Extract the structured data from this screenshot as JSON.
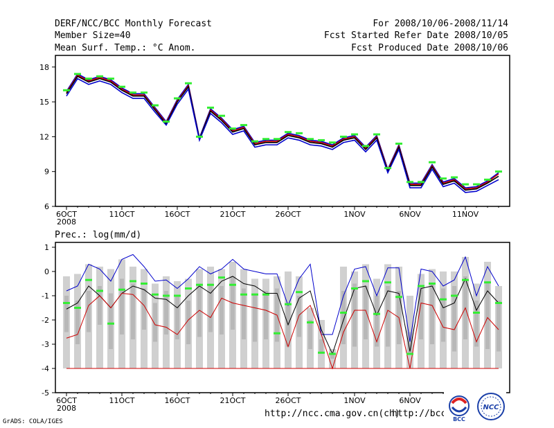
{
  "header": {
    "title": "DERF/NCC/BCC Monthly Forecast",
    "member": "Member Size=40",
    "variable": "Mean Surf. Temp.: °C Anom.",
    "period": "For 2008/10/06-2008/11/14",
    "refer": "Fcst Started Refer Date 2008/10/05",
    "produced": "Fcst Produced Date 2008/10/06"
  },
  "footer": {
    "grads": "GrADS: COLA/IGES",
    "url1": "http://ncc.cma.gov.cn(ch)",
    "url2": "http://bcc.c",
    "logo_bcc": "BCC",
    "logo_ncc": "NCC"
  },
  "colors": {
    "blue": "#0000cc",
    "red": "#cc0000",
    "green": "#33ee33",
    "box": "#d0d0d0",
    "grey": "#b8b8b8"
  },
  "chart_data": [
    {
      "type": "line",
      "title": "",
      "ylabel": "Mean Surf. Temp.: °C Anom.",
      "ylim": [
        6,
        19
      ],
      "yticks": [
        6,
        9,
        12,
        15,
        18
      ],
      "xticks": [
        {
          "day": 0,
          "label": "6OCT",
          "sub": "2008"
        },
        {
          "day": 5,
          "label": "11OCT"
        },
        {
          "day": 10,
          "label": "16OCT"
        },
        {
          "day": 15,
          "label": "21OCT"
        },
        {
          "day": 20,
          "label": "26OCT"
        },
        {
          "day": 26,
          "label": "1NOV"
        },
        {
          "day": 31,
          "label": "6NOV"
        },
        {
          "day": 36,
          "label": "11NOV"
        }
      ],
      "series": [
        {
          "name": "upper",
          "color": "#0000cc",
          "values": [
            15.9,
            17.4,
            16.9,
            17.2,
            16.9,
            16.2,
            15.7,
            15.7,
            14.5,
            13.3,
            15.2,
            16.5,
            11.9,
            14.4,
            13.6,
            12.6,
            12.9,
            11.5,
            11.7,
            11.7,
            12.3,
            12.1,
            11.7,
            11.6,
            11.3,
            11.9,
            12.1,
            11.1,
            12.1,
            9.2,
            11.3,
            8.0,
            8.0,
            9.6,
            8.1,
            8.4,
            7.6,
            7.7,
            8.2,
            8.9
          ]
        },
        {
          "name": "red",
          "color": "#cc0000",
          "values": [
            15.8,
            17.3,
            16.8,
            17.1,
            16.8,
            16.1,
            15.6,
            15.6,
            14.4,
            13.2,
            15.1,
            16.4,
            11.8,
            14.3,
            13.5,
            12.5,
            12.8,
            11.4,
            11.6,
            11.6,
            12.2,
            12.0,
            11.6,
            11.5,
            11.2,
            11.8,
            12.0,
            11.0,
            12.0,
            9.1,
            11.2,
            7.9,
            7.9,
            9.5,
            8.0,
            8.3,
            7.5,
            7.6,
            8.1,
            8.8
          ]
        },
        {
          "name": "mean",
          "color": "#000000",
          "values": [
            15.7,
            17.2,
            16.7,
            17.0,
            16.7,
            16.0,
            15.5,
            15.5,
            14.3,
            13.1,
            15.0,
            16.3,
            11.8,
            14.2,
            13.4,
            12.4,
            12.7,
            11.3,
            11.5,
            11.5,
            12.1,
            11.9,
            11.5,
            11.4,
            11.1,
            11.7,
            11.9,
            10.9,
            11.9,
            9.0,
            11.1,
            7.8,
            7.8,
            9.4,
            7.9,
            8.2,
            7.4,
            7.5,
            8.0,
            8.6
          ]
        },
        {
          "name": "lower",
          "color": "#0000cc",
          "values": [
            15.5,
            17.0,
            16.5,
            16.8,
            16.5,
            15.8,
            15.3,
            15.3,
            14.1,
            13.0,
            14.8,
            16.1,
            11.7,
            14.0,
            13.2,
            12.2,
            12.5,
            11.1,
            11.3,
            11.3,
            11.9,
            11.7,
            11.3,
            11.2,
            10.9,
            11.5,
            11.7,
            10.7,
            11.7,
            8.9,
            10.9,
            7.6,
            7.6,
            9.2,
            7.7,
            8.0,
            7.2,
            7.3,
            7.8,
            8.3
          ]
        },
        {
          "name": "observed",
          "color": "#33ee33",
          "values": [
            16.0,
            17.4,
            17.0,
            17.2,
            17.0,
            16.3,
            15.8,
            15.8,
            14.7,
            13.3,
            15.3,
            16.6,
            12.0,
            14.5,
            13.8,
            12.7,
            13.0,
            11.6,
            11.8,
            11.8,
            12.4,
            12.3,
            11.8,
            11.7,
            11.5,
            12.0,
            12.2,
            11.2,
            12.2,
            9.3,
            11.4,
            8.1,
            8.1,
            9.8,
            8.4,
            8.5,
            7.9,
            7.9,
            8.3,
            9.0
          ]
        }
      ]
    },
    {
      "type": "box",
      "title": "Prec.: log(mm/d)",
      "ylabel": "Prec.: log(mm/d)",
      "ylim": [
        -5,
        1.2
      ],
      "yticks": [
        -5,
        -4,
        -3,
        -2,
        -1,
        0,
        1
      ],
      "xticks": [
        {
          "day": 0,
          "label": "6OCT",
          "sub": "2008"
        },
        {
          "day": 5,
          "label": "11OCT"
        },
        {
          "day": 10,
          "label": "16OCT"
        },
        {
          "day": 15,
          "label": "21OCT"
        },
        {
          "day": 20,
          "label": "26OCT"
        },
        {
          "day": 26,
          "label": "1NOV"
        },
        {
          "day": 31,
          "label": "6NOV"
        },
        {
          "day": 36,
          "label": "11NOV"
        }
      ],
      "box_top": [
        -0.2,
        -0.1,
        0.3,
        0.2,
        0.1,
        0.5,
        0.2,
        0.1,
        -0.5,
        -0.2,
        -0.4,
        -0.3,
        0.1,
        0.2,
        0.1,
        0.4,
        0.1,
        -0.3,
        -0.3,
        -0.2,
        0.0,
        -0.2,
        -1.5,
        -2.0,
        -3.2,
        0.2,
        0.0,
        0.3,
        -0.3,
        0.3,
        0.2,
        -1.0,
        -0.1,
        0.1,
        0.0,
        0.0,
        0.6,
        -0.5,
        0.4,
        -0.6
      ],
      "box_bottom": [
        -4,
        -4,
        -4,
        -4,
        -4,
        -4,
        -4,
        -4,
        -4,
        -4,
        -4,
        -4,
        -4,
        -4,
        -4,
        -4,
        -4,
        -4,
        -4,
        -4,
        -4,
        -4,
        -4,
        -4,
        -4,
        -4,
        -4,
        -4,
        -4,
        -4,
        -4,
        -4,
        -4,
        -4,
        -4,
        -4,
        -4,
        -4,
        -4,
        -4
      ],
      "inner_top": [
        -1.0,
        -1.2,
        -0.8,
        -0.6,
        -0.9,
        -0.3,
        -0.5,
        -0.7,
        -1.3,
        -0.8,
        -1.0,
        -1.2,
        -0.5,
        -0.5,
        -0.6,
        -0.2,
        -0.7,
        -0.9,
        -0.8,
        -0.7,
        -1.3,
        -1.0,
        -2.0,
        -2.8,
        -3.4,
        -0.8,
        -0.5,
        -0.6,
        -1.0,
        -0.6,
        -0.8,
        -2.5,
        -0.6,
        -0.5,
        -0.7,
        -0.6,
        -0.2,
        -1.2,
        -0.4,
        -1.2
      ],
      "inner_bottom": [
        -2.5,
        -3.0,
        -2.5,
        -2.2,
        -3.2,
        -2.6,
        -2.8,
        -2.4,
        -2.9,
        -2.6,
        -2.8,
        -3.0,
        -2.7,
        -2.5,
        -2.6,
        -2.4,
        -2.8,
        -2.9,
        -2.8,
        -2.9,
        -3.1,
        -2.7,
        -3.2,
        -3.4,
        -3.6,
        -3.0,
        -3.1,
        -2.8,
        -3.1,
        -3.1,
        -3.0,
        -3.4,
        -2.8,
        -3.0,
        -2.9,
        -3.3,
        -2.8,
        -3.1,
        -3.2,
        -3.3
      ],
      "series": [
        {
          "name": "upper",
          "color": "#0000cc",
          "values": [
            -0.8,
            -0.6,
            0.3,
            0.1,
            -0.4,
            0.5,
            0.7,
            0.2,
            -0.4,
            -0.35,
            -0.7,
            -0.3,
            0.2,
            -0.1,
            0.1,
            0.5,
            0.1,
            0.0,
            -0.1,
            -0.1,
            -1.4,
            -0.3,
            0.3,
            -2.6,
            -2.6,
            -1.0,
            0.1,
            0.2,
            -1.0,
            0.15,
            0.15,
            -2.9,
            0.1,
            0.0,
            -0.6,
            -0.35,
            0.6,
            -1.0,
            0.2,
            -0.6
          ]
        },
        {
          "name": "mean",
          "color": "#000000",
          "values": [
            -1.55,
            -1.3,
            -0.6,
            -1.0,
            -1.5,
            -0.9,
            -0.6,
            -0.75,
            -1.1,
            -1.15,
            -1.5,
            -1.0,
            -0.6,
            -0.9,
            -0.4,
            -0.2,
            -0.5,
            -0.6,
            -0.9,
            -0.9,
            -2.2,
            -1.1,
            -0.8,
            -2.4,
            -3.4,
            -2.0,
            -0.7,
            -0.6,
            -1.8,
            -0.8,
            -0.9,
            -3.3,
            -0.7,
            -0.6,
            -1.5,
            -1.3,
            -0.3,
            -1.6,
            -0.8,
            -1.3
          ]
        },
        {
          "name": "lower",
          "color": "#cc0000",
          "values": [
            -2.75,
            -2.6,
            -1.4,
            -1.0,
            -1.5,
            -0.9,
            -0.95,
            -1.4,
            -2.2,
            -2.3,
            -2.6,
            -2.0,
            -1.6,
            -1.9,
            -1.1,
            -1.3,
            -1.4,
            -1.5,
            -1.6,
            -1.8,
            -3.1,
            -1.8,
            -1.4,
            -2.6,
            -4.0,
            -2.5,
            -1.6,
            -1.6,
            -2.9,
            -1.6,
            -1.9,
            -4.0,
            -1.3,
            -1.4,
            -2.3,
            -2.4,
            -1.5,
            -2.9,
            -1.9,
            -2.4
          ]
        },
        {
          "name": "observed",
          "color": "#33ee33",
          "values": [
            -1.3,
            -1.5,
            -0.35,
            -0.8,
            -2.15,
            -0.75,
            -0.4,
            -0.5,
            -0.95,
            -1.0,
            -1.0,
            -0.7,
            -0.55,
            -0.55,
            -0.25,
            -0.55,
            -0.95,
            -0.95,
            -0.95,
            -2.55,
            -1.35,
            -0.85,
            -2.1,
            -3.35,
            -3.4,
            -1.7,
            -0.7,
            -0.4,
            -1.75,
            -0.45,
            -1.05,
            -3.4,
            -0.6,
            -0.5,
            -1.15,
            -1.0,
            -0.35,
            -1.7,
            -0.45,
            -1.3
          ]
        }
      ],
      "floor": -4
    }
  ]
}
